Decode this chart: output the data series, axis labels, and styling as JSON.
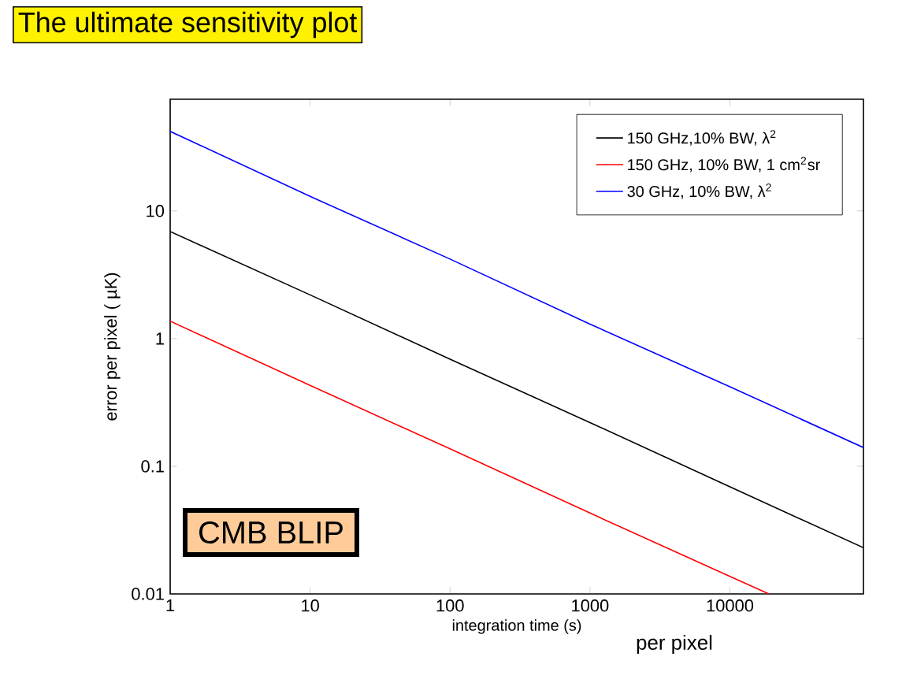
{
  "chart_data": {
    "type": "line",
    "title": "The ultimate sensitivity plot",
    "xlabel": "integration time (s)",
    "ylabel": "error per pixel (  µK)",
    "log": "xy",
    "xlim": [
      1,
      90000
    ],
    "ylim": [
      0.01,
      75
    ],
    "xticks": [
      1,
      10,
      100,
      1000,
      10000
    ],
    "yticks": [
      0.01,
      0.1,
      1,
      10
    ],
    "legend": "top right",
    "grid": false,
    "series": [
      {
        "name": "150 GHz,10% BW, λ$^{2}$",
        "color": "#000000",
        "x": [
          1,
          10,
          100,
          1000,
          10000,
          90000
        ],
        "values": [
          6.9,
          2.2,
          0.69,
          0.22,
          0.069,
          0.023
        ]
      },
      {
        "name": "150 GHz, 10% BW, 1 cm$^{2}$sr",
        "color": "#ff0000",
        "x": [
          1,
          10,
          100,
          1000,
          10000,
          19000
        ],
        "values": [
          1.37,
          0.43,
          0.137,
          0.043,
          0.0137,
          0.01
        ]
      },
      {
        "name": "30 GHz, 10% BW, λ$^{2}$",
        "color": "#0000ff",
        "x": [
          1,
          10,
          100,
          1000,
          10000,
          90000
        ],
        "values": [
          42,
          13,
          4.2,
          1.3,
          0.42,
          0.14
        ]
      }
    ],
    "annotations": [
      "CMB BLIP",
      "per pixel"
    ]
  }
}
